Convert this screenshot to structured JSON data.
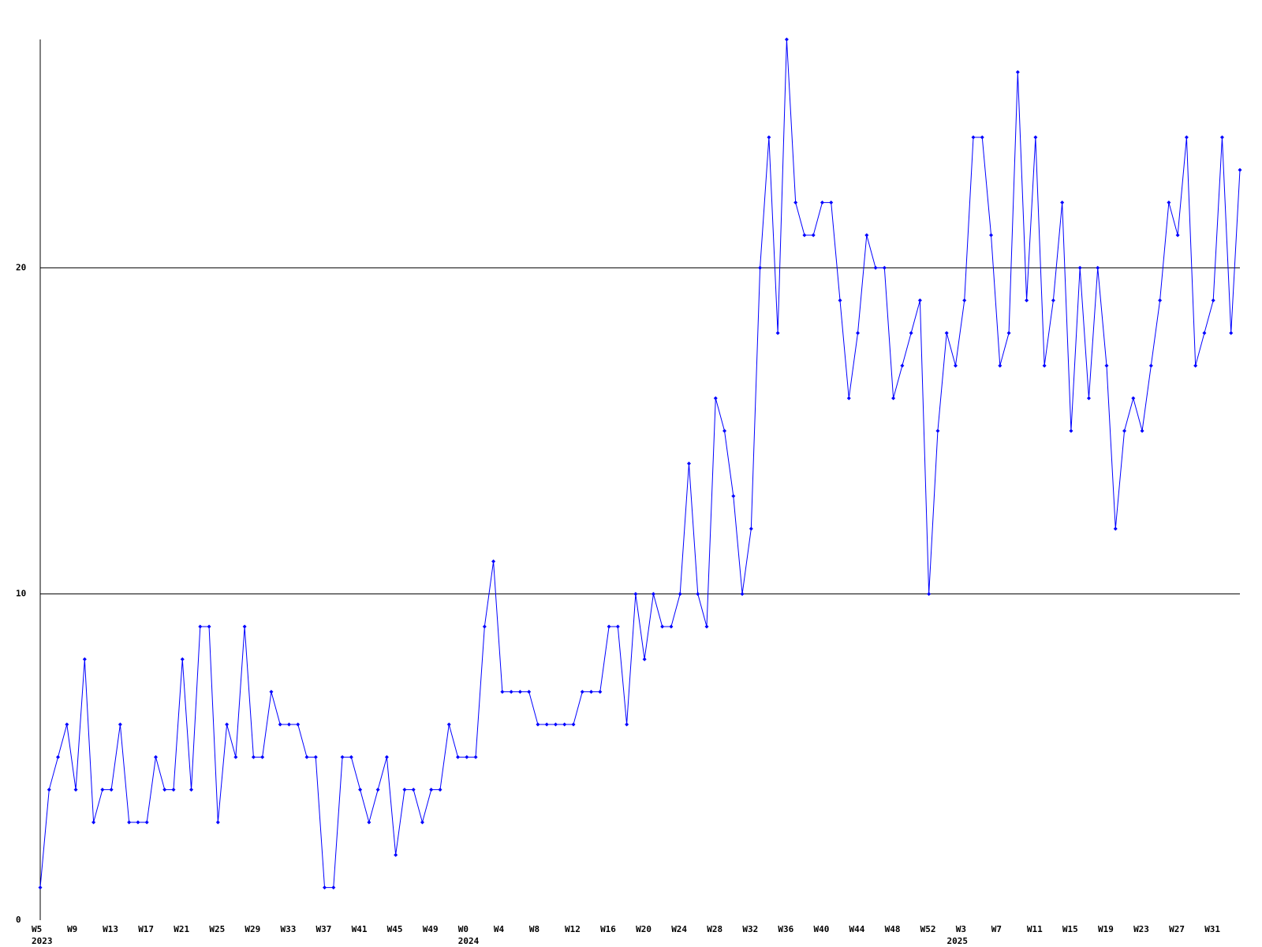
{
  "chart_data": {
    "type": "line",
    "categories": [
      "W5",
      null,
      null,
      null,
      "W9",
      null,
      null,
      null,
      "W13",
      null,
      null,
      null,
      "W17",
      null,
      null,
      null,
      "W21",
      null,
      null,
      null,
      "W25",
      null,
      null,
      null,
      "W29",
      null,
      null,
      null,
      "W33",
      null,
      null,
      null,
      "W37",
      null,
      null,
      null,
      "W41",
      null,
      null,
      null,
      "W45",
      null,
      null,
      null,
      "W49",
      null,
      null,
      null,
      "W0",
      null,
      null,
      null,
      "W4",
      null,
      null,
      null,
      "W8",
      null,
      null,
      null,
      "W12",
      null,
      null,
      null,
      "W16",
      null,
      null,
      null,
      "W20",
      null,
      null,
      null,
      "W24",
      null,
      null,
      null,
      "W28",
      null,
      null,
      null,
      "W32",
      null,
      null,
      null,
      "W36",
      null,
      null,
      null,
      "W40",
      null,
      null,
      null,
      "W44",
      null,
      null,
      null,
      "W48",
      null,
      null,
      null,
      "W52",
      null,
      null,
      null,
      "W3",
      null,
      null,
      null,
      "W7",
      null,
      null,
      null,
      "W11",
      null,
      null,
      null,
      "W15",
      null,
      null,
      null,
      "W19",
      null,
      null,
      null,
      "W23",
      null,
      null,
      null,
      "W27",
      null,
      null,
      null,
      "W31",
      null,
      null,
      null
    ],
    "year_labels": [
      "2023",
      null,
      null,
      null,
      null,
      null,
      null,
      null,
      null,
      null,
      null,
      null,
      null,
      null,
      null,
      null,
      null,
      null,
      null,
      null,
      null,
      null,
      null,
      null,
      null,
      null,
      null,
      null,
      null,
      null,
      null,
      null,
      null,
      null,
      null,
      null,
      null,
      null,
      null,
      null,
      null,
      null,
      null,
      null,
      null,
      null,
      null,
      null,
      "2024",
      null,
      null,
      null,
      null,
      null,
      null,
      null,
      null,
      null,
      null,
      null,
      null,
      null,
      null,
      null,
      null,
      null,
      null,
      null,
      null,
      null,
      null,
      null,
      null,
      null,
      null,
      null,
      null,
      null,
      null,
      null,
      null,
      null,
      null,
      null,
      null,
      null,
      null,
      null,
      null,
      null,
      null,
      null,
      null,
      null,
      null,
      null,
      null,
      null,
      null,
      null,
      null,
      null,
      null,
      "2025",
      null,
      null,
      null,
      null,
      null,
      null,
      null,
      null,
      null,
      null,
      null,
      null,
      null,
      null,
      null,
      null,
      null,
      null,
      null,
      null,
      null,
      null,
      null,
      null,
      null,
      null,
      null,
      null,
      null,
      null,
      null,
      null,
      null,
      null
    ],
    "series": [
      {
        "color": "#0000ff",
        "values": [
          1,
          4,
          5,
          6,
          4,
          8,
          3,
          4,
          4,
          6,
          3,
          3,
          3,
          5,
          4,
          4,
          8,
          4,
          9,
          9,
          3,
          6,
          5,
          9,
          5,
          5,
          7,
          6,
          6,
          6,
          5,
          5,
          1,
          1,
          5,
          5,
          4,
          3,
          4,
          5,
          2,
          4,
          4,
          3,
          4,
          4,
          6,
          5,
          5,
          5,
          9,
          11,
          7,
          7,
          7,
          7,
          6,
          6,
          6,
          6,
          6,
          7,
          7,
          7,
          9,
          9,
          6,
          10,
          8,
          10,
          9,
          9,
          10,
          14,
          10,
          9,
          16,
          15,
          13,
          10,
          12,
          20,
          24,
          18,
          27,
          22,
          21,
          21,
          22,
          22,
          19,
          16,
          18,
          21,
          20,
          20,
          16,
          17,
          18,
          19,
          10,
          15,
          18,
          17,
          19,
          24,
          24,
          21,
          17,
          18,
          26,
          19,
          24,
          17,
          19,
          22,
          15,
          20,
          16,
          20,
          17,
          12,
          15,
          16,
          15,
          17,
          19,
          22,
          21,
          24,
          17,
          18,
          19,
          24,
          18,
          23
        ]
      }
    ],
    "ylim": [
      0,
      27
    ],
    "yticks": [
      0,
      10,
      20
    ],
    "grid": true
  }
}
